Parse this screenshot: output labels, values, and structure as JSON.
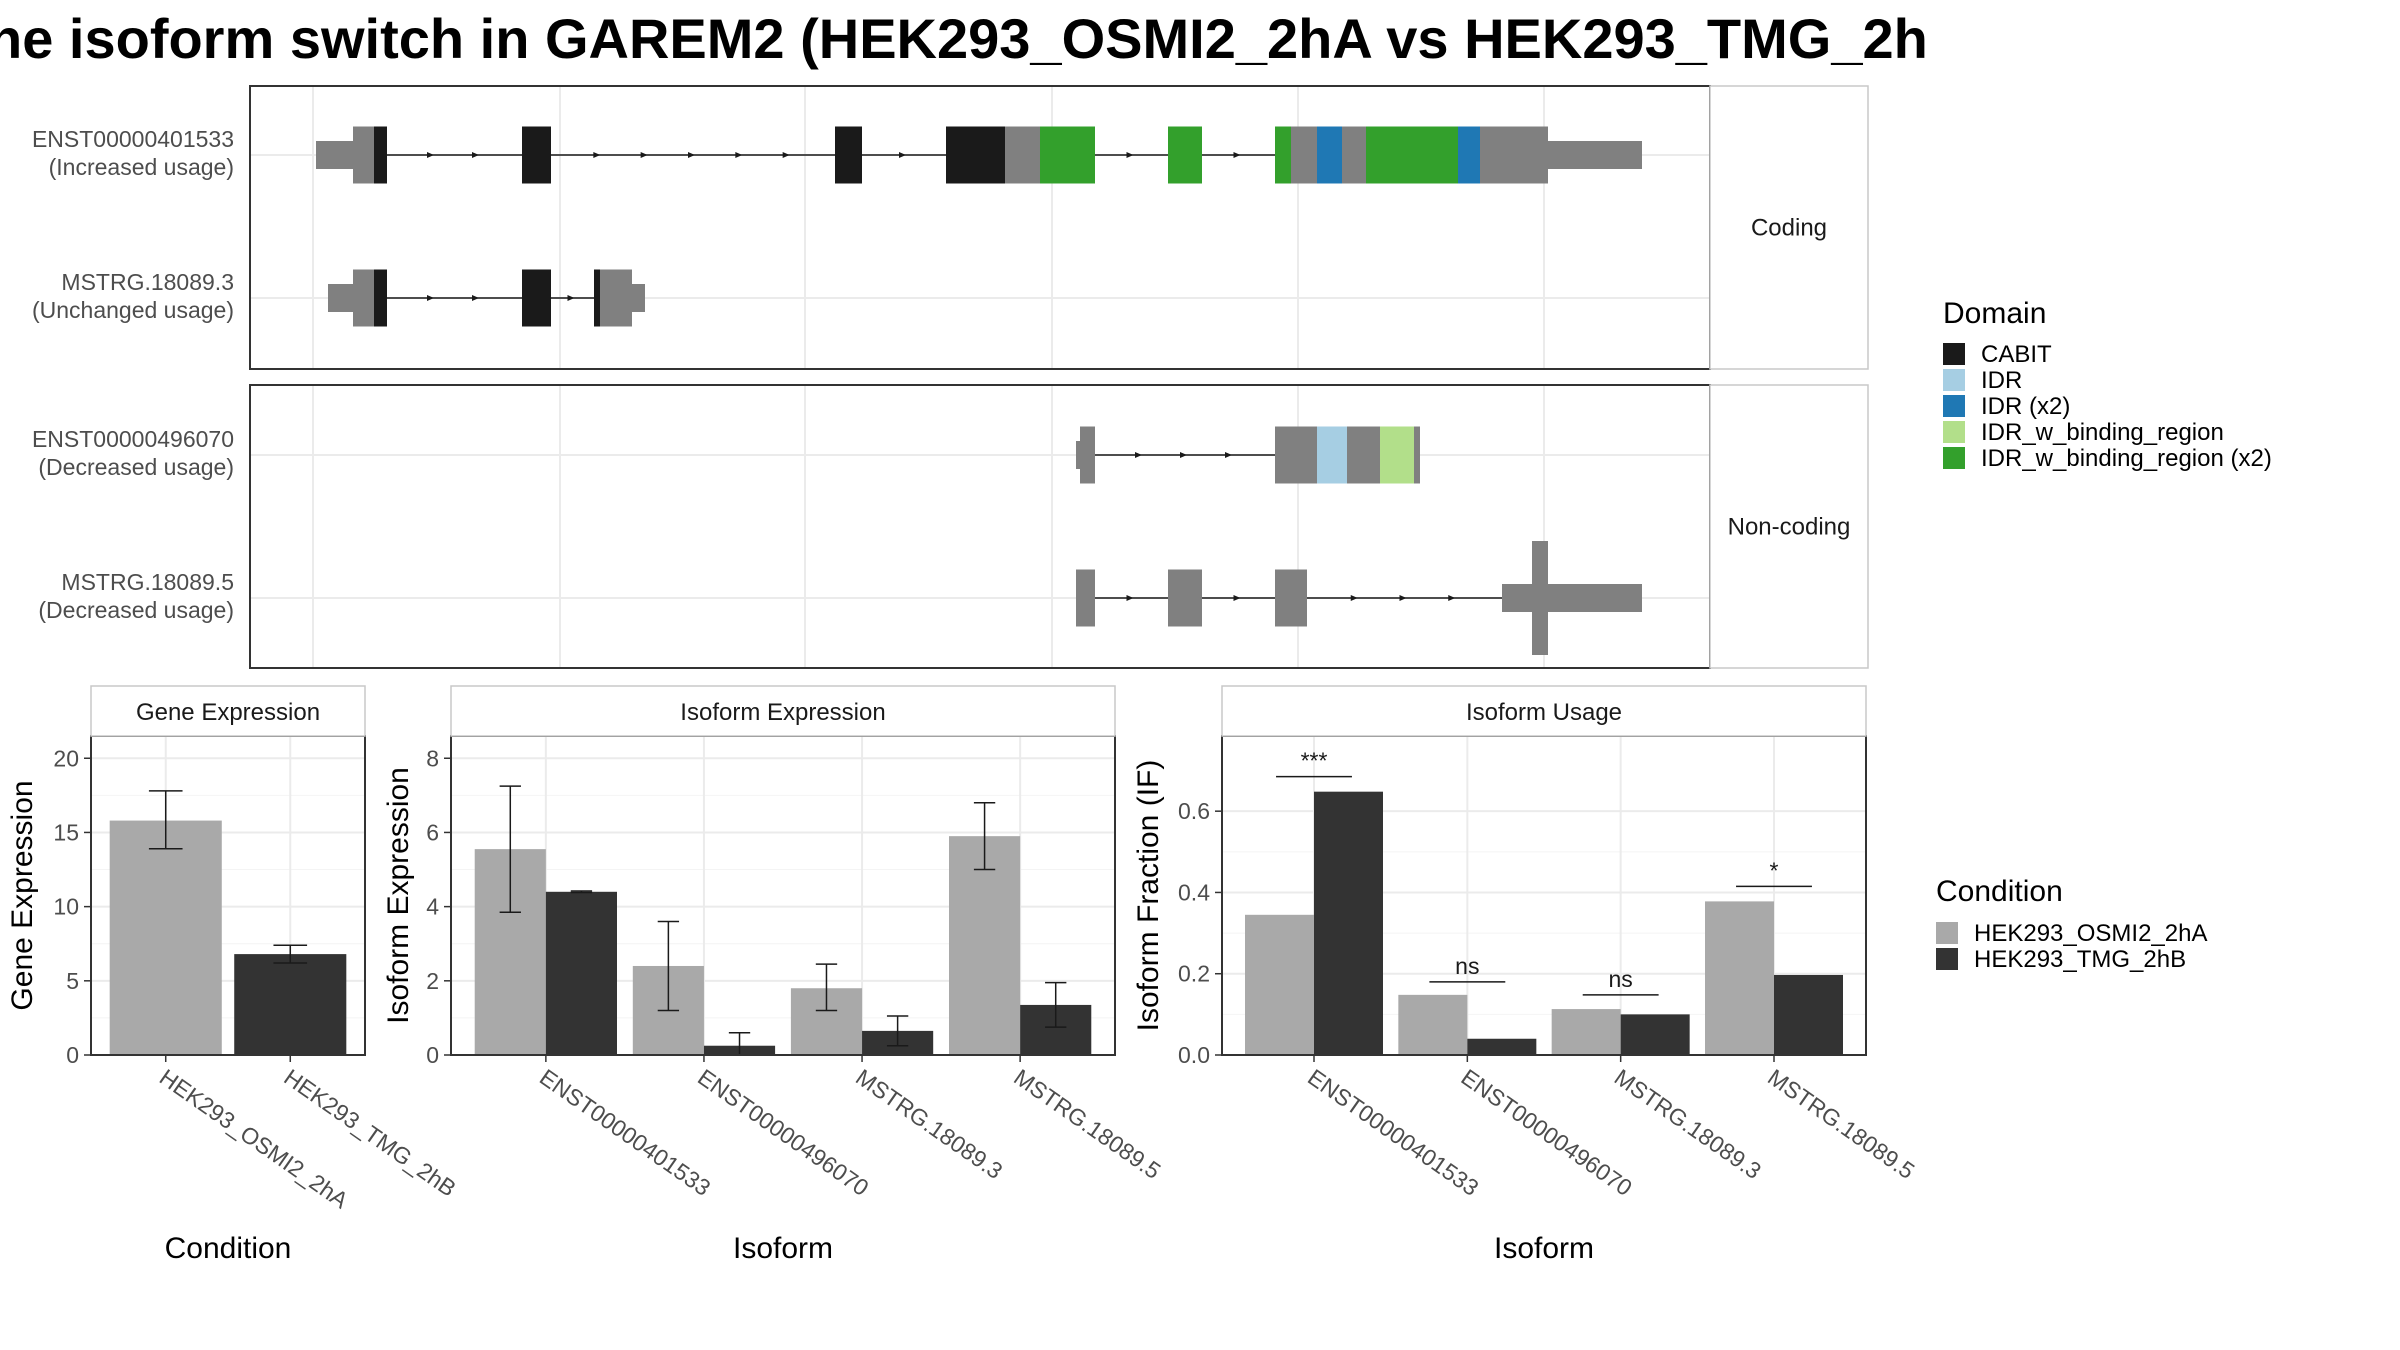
{
  "title": "he isoform switch in GAREM2 (HEK293_OSMI2_2hA vs HEK293_TMG_2h",
  "colors": {
    "grey_exon": "#808080",
    "CABIT": "#1a1a1a",
    "IDR": "#a6cee3",
    "IDR (x2)": "#1f78b4",
    "IDR_w_binding_region": "#b2df8a",
    "IDR_w_binding_region (x2)": "#33a02c",
    "cond_A": "#a9a9a9",
    "cond_B": "#333333",
    "grid": "#ebebeb"
  },
  "structure_panels": [
    {
      "label": "Coding",
      "rows": [
        {
          "name": "ENST00000401533",
          "sub": "(Increased usage)"
        },
        {
          "name": "MSTRG.18089.3",
          "sub": "(Unchanged usage)"
        }
      ]
    },
    {
      "label": "Non-coding",
      "rows": [
        {
          "name": "ENST00000496070",
          "sub": "(Decreased usage)"
        },
        {
          "name": "MSTRG.18089.5",
          "sub": "(Decreased usage)"
        }
      ]
    }
  ],
  "legend_domain": {
    "title": "Domain",
    "items": [
      "CABIT",
      "IDR",
      "IDR (x2)",
      "IDR_w_binding_region",
      "IDR_w_binding_region (x2)"
    ]
  },
  "legend_condition": {
    "title": "Condition",
    "items": [
      "HEK293_OSMI2_2hA",
      "HEK293_TMG_2hB"
    ]
  },
  "chart_data": [
    {
      "type": "bar",
      "title": "Gene Expression",
      "xlabel": "Condition",
      "ylabel": "Gene Expression",
      "ylim": [
        0,
        21.5
      ],
      "yticks": [
        0,
        5,
        10,
        15,
        20
      ],
      "categories": [
        "HEK293_OSMI2_2hA",
        "HEK293_TMG_2hB"
      ],
      "values": [
        15.8,
        6.8
      ],
      "errors": [
        [
          13.9,
          17.8
        ],
        [
          6.2,
          7.4
        ]
      ]
    },
    {
      "type": "bar",
      "title": "Isoform Expression",
      "xlabel": "Isoform",
      "ylabel": "Isoform Expression",
      "ylim": [
        0,
        8.6
      ],
      "yticks": [
        0,
        2,
        4,
        6,
        8
      ],
      "categories": [
        "ENST00000401533",
        "ENST00000496070",
        "MSTRG.18089.3",
        "MSTRG.18089.5"
      ],
      "series": [
        {
          "name": "HEK293_OSMI2_2hA",
          "values": [
            5.55,
            2.4,
            1.8,
            5.9
          ],
          "errors": [
            [
              3.85,
              7.25
            ],
            [
              1.2,
              3.6
            ],
            [
              1.2,
              2.45
            ],
            [
              5.0,
              6.8
            ]
          ]
        },
        {
          "name": "HEK293_TMG_2hB",
          "values": [
            4.4,
            0.25,
            0.65,
            1.35
          ],
          "errors": [
            [
              4.38,
              4.42
            ],
            [
              0.0,
              0.6
            ],
            [
              0.25,
              1.05
            ],
            [
              0.75,
              1.95
            ]
          ]
        }
      ]
    },
    {
      "type": "bar",
      "title": "Isoform Usage",
      "xlabel": "Isoform",
      "ylabel": "Isoform Fraction (IF)",
      "ylim": [
        0,
        0.785
      ],
      "yticks": [
        0.0,
        0.2,
        0.4,
        0.6
      ],
      "ytick_labels": [
        "0.0",
        "0.2",
        "0.4",
        "0.6"
      ],
      "categories": [
        "ENST00000401533",
        "ENST00000496070",
        "MSTRG.18089.3",
        "MSTRG.18089.5"
      ],
      "series": [
        {
          "name": "HEK293_OSMI2_2hA",
          "values": [
            0.345,
            0.148,
            0.113,
            0.378
          ]
        },
        {
          "name": "HEK293_TMG_2hB",
          "values": [
            0.648,
            0.04,
            0.1,
            0.197
          ]
        }
      ],
      "significance": [
        "***",
        "ns",
        "ns",
        "*"
      ],
      "sig_y": [
        0.685,
        0.18,
        0.148,
        0.415
      ]
    }
  ]
}
